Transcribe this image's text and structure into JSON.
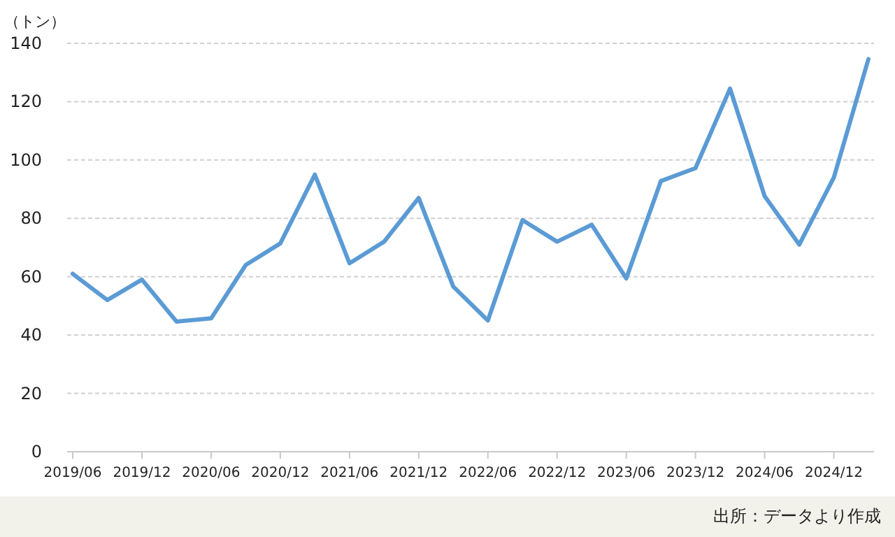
{
  "chart_data": {
    "type": "line",
    "ylabel": "（トン）",
    "annotations": [
      "出所：データより作成"
    ],
    "categories": [
      "2019/06",
      null,
      "2019/12",
      null,
      "2020/06",
      null,
      "2020/12",
      null,
      "2021/06",
      null,
      "2021/12",
      null,
      "2022/06",
      null,
      "2022/12",
      null,
      "2023/06",
      null,
      "2023/12",
      null,
      "2024/06",
      null,
      "2024/12",
      null
    ],
    "values": [
      61,
      52,
      59,
      44.6,
      45.7,
      64,
      71.4,
      95,
      64.6,
      72,
      87,
      56.6,
      45,
      79.4,
      72,
      77.8,
      59.4,
      92.8,
      97.2,
      124.5,
      87.6,
      71,
      94,
      134.6
    ],
    "color": "#5b9bd5",
    "ylim": [
      0,
      140
    ],
    "yticks": [
      0,
      20,
      40,
      60,
      80,
      100,
      120,
      140
    ],
    "grid": "y"
  }
}
